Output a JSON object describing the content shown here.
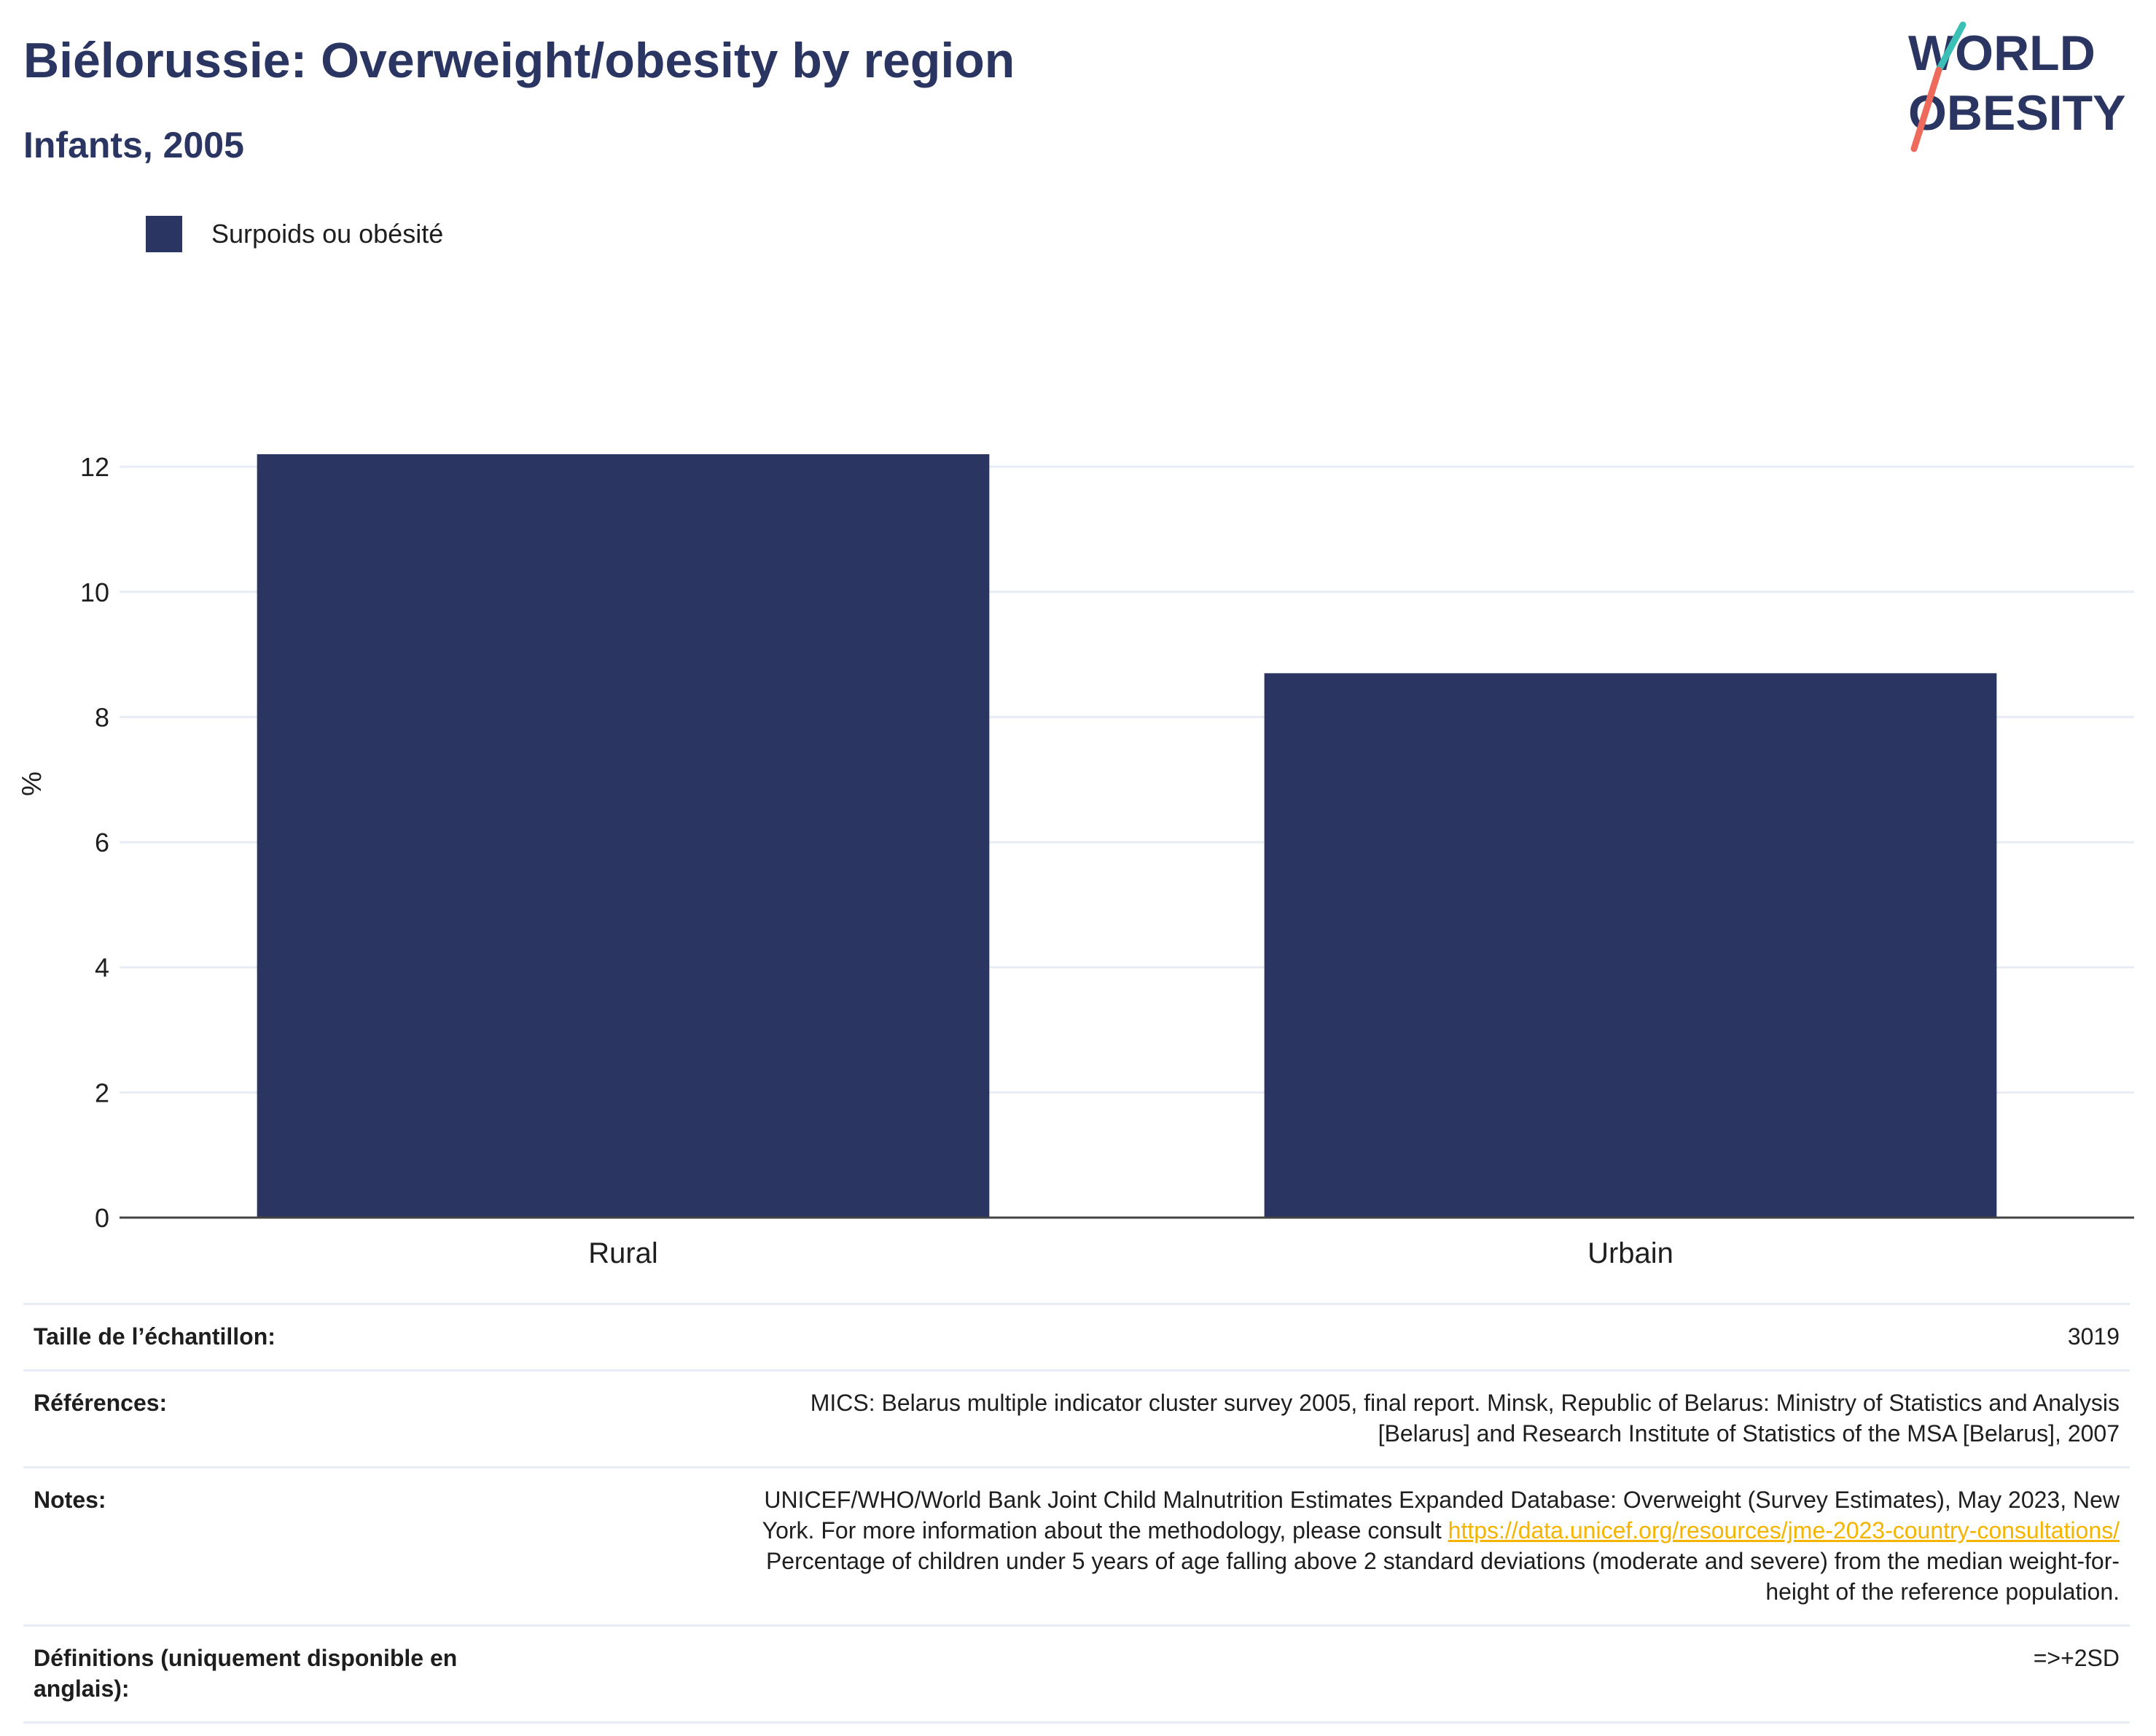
{
  "header": {
    "title": "Biélorussie: Overweight/obesity by region",
    "subtitle": "Infants, 2005"
  },
  "logo": {
    "line1": "WORLD",
    "line2": "OBESITY"
  },
  "chart_data": {
    "type": "bar",
    "categories": [
      "Rural",
      "Urbain"
    ],
    "series": [
      {
        "name": "Surpoids ou obésité",
        "values": [
          12.2,
          8.7
        ],
        "color": "#2a3562"
      }
    ],
    "ylabel": "%",
    "xlabel": "",
    "ylim": [
      0,
      13.4
    ],
    "yticks": [
      0,
      2,
      4,
      6,
      8,
      10,
      12
    ],
    "grid": true,
    "legend_position": "top-left"
  },
  "footer": {
    "sample_size_label": "Taille de l’échantillon:",
    "sample_size_value": "3019",
    "references_label": "Références:",
    "references_line1": "MICS: Belarus multiple indicator cluster survey 2005, final report. Minsk, Republic of Belarus: Ministry of Statistics and Analysis",
    "references_line2": "[Belarus] and Research Institute of Statistics of the MSA [Belarus], 2007",
    "notes_label": "Notes:",
    "notes_line1": "UNICEF/WHO/World Bank Joint Child Malnutrition Estimates Expanded Database: Overweight (Survey Estimates), May 2023, New",
    "notes_line2_prefix": "York. For more information about the methodology, please consult",
    "notes_link": "https://data.unicef.org/resources/jme-2023-country-consultations/",
    "notes_line3": "Percentage of children under 5 years of age falling above 2 standard deviations (moderate and severe) from the median weight-for-",
    "notes_line4": "height of the reference population.",
    "definitions_label_line1": "Définitions (uniquement disponible en",
    "definitions_label_line2": "anglais):",
    "definitions_value": "=>+2SD"
  }
}
